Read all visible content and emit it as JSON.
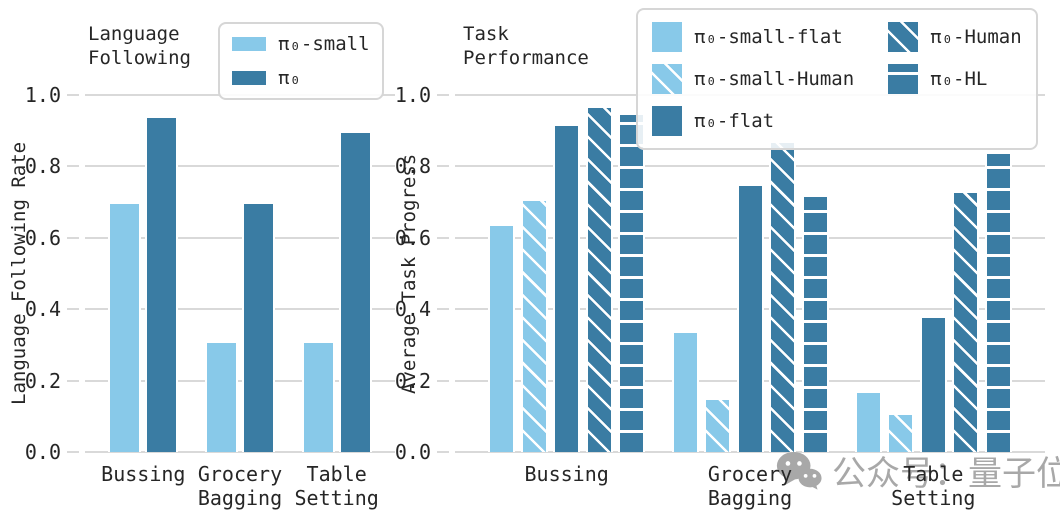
{
  "colors": {
    "light_blue": "#88C9E9",
    "dark_blue": "#3A7CA3",
    "grid": "#d9d9d9",
    "text": "#262626",
    "watermark_gray": "#a8a8a8"
  },
  "watermark": {
    "text": "公众号：量子位",
    "icon": "wechat-icon"
  },
  "chart_data": [
    {
      "type": "bar",
      "title": "Language Following",
      "ylabel": "Language Following Rate",
      "xlabel": "",
      "categories": [
        "Bussing",
        "Grocery Bagging",
        "Table Setting"
      ],
      "series": [
        {
          "name": "π₀-small",
          "color": "#88C9E9",
          "hatch": "none",
          "values": [
            0.7,
            0.31,
            0.31
          ]
        },
        {
          "name": "π₀",
          "color": "#3A7CA3",
          "hatch": "none",
          "values": [
            0.94,
            0.7,
            0.9
          ]
        }
      ],
      "ylim": [
        0,
        1.0
      ],
      "yticks": [
        0.0,
        0.2,
        0.4,
        0.6,
        0.8,
        1.0
      ],
      "grid": true,
      "legend_position": "top-right",
      "legend_columns": [
        [
          0,
          1
        ]
      ]
    },
    {
      "type": "bar",
      "title": "Task Performance",
      "ylabel": "Average Task Progress",
      "xlabel": "",
      "categories": [
        "Bussing",
        "Grocery Bagging",
        "Table Setting"
      ],
      "series": [
        {
          "name": "π₀-small-flat",
          "color": "#88C9E9",
          "hatch": "none",
          "values": [
            0.64,
            0.34,
            0.17
          ]
        },
        {
          "name": "π₀-small-Human",
          "color": "#88C9E9",
          "hatch": "diag",
          "values": [
            0.71,
            0.15,
            0.11
          ]
        },
        {
          "name": "π₀-flat",
          "color": "#3A7CA3",
          "hatch": "none",
          "values": [
            0.92,
            0.75,
            0.38
          ]
        },
        {
          "name": "π₀-Human",
          "color": "#3A7CA3",
          "hatch": "diag",
          "values": [
            0.97,
            0.87,
            0.73
          ]
        },
        {
          "name": "π₀-HL",
          "color": "#3A7CA3",
          "hatch": "horiz",
          "values": [
            0.95,
            0.72,
            0.84
          ]
        }
      ],
      "ylim": [
        0,
        1.0
      ],
      "yticks": [
        0.0,
        0.2,
        0.4,
        0.6,
        0.8,
        1.0
      ],
      "grid": true,
      "legend_position": "top-right",
      "legend_columns": [
        [
          0,
          1,
          2
        ],
        [
          3,
          4
        ]
      ]
    }
  ]
}
